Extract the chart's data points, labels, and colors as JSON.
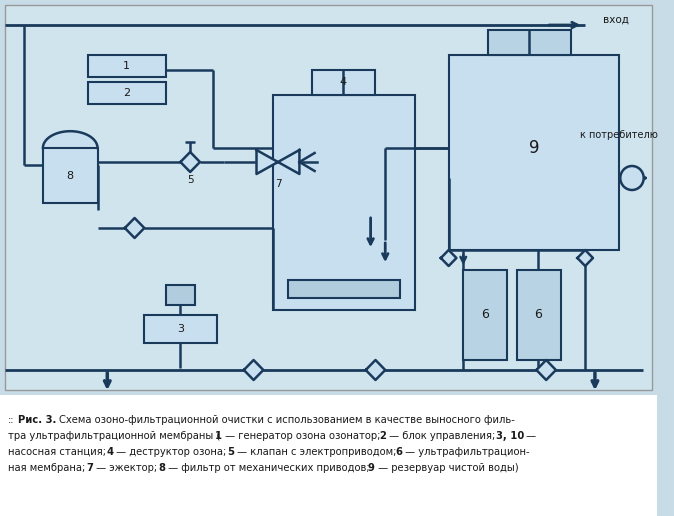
{
  "bg_color": "#d6e8f0",
  "diagram_bg": "#d6e8f0",
  "box_fill": "#c8dff0",
  "box_edge": "#1a3a5c",
  "line_color": "#1a3a5c",
  "text_color": "#1a1a1a",
  "title_line1": ":: Рис. 3. Схема озоно-фильтрационной очистки с использованием в качестве выносного филь-",
  "title_line2": "тра ультрафильтрационной мембраны (1 — генератор озона озонатор; 2 — блок управления; 3, 10 —",
  "title_line3": "насосная станция; 4 — деструктор озона; 5 — клапан с электроприводом; 6 — ультрафильтрацион-",
  "title_line4": "ная мембрана; 7 — эжектор; 8 — фильтр от механических приводов; 9 — резервуар чистой воды)"
}
